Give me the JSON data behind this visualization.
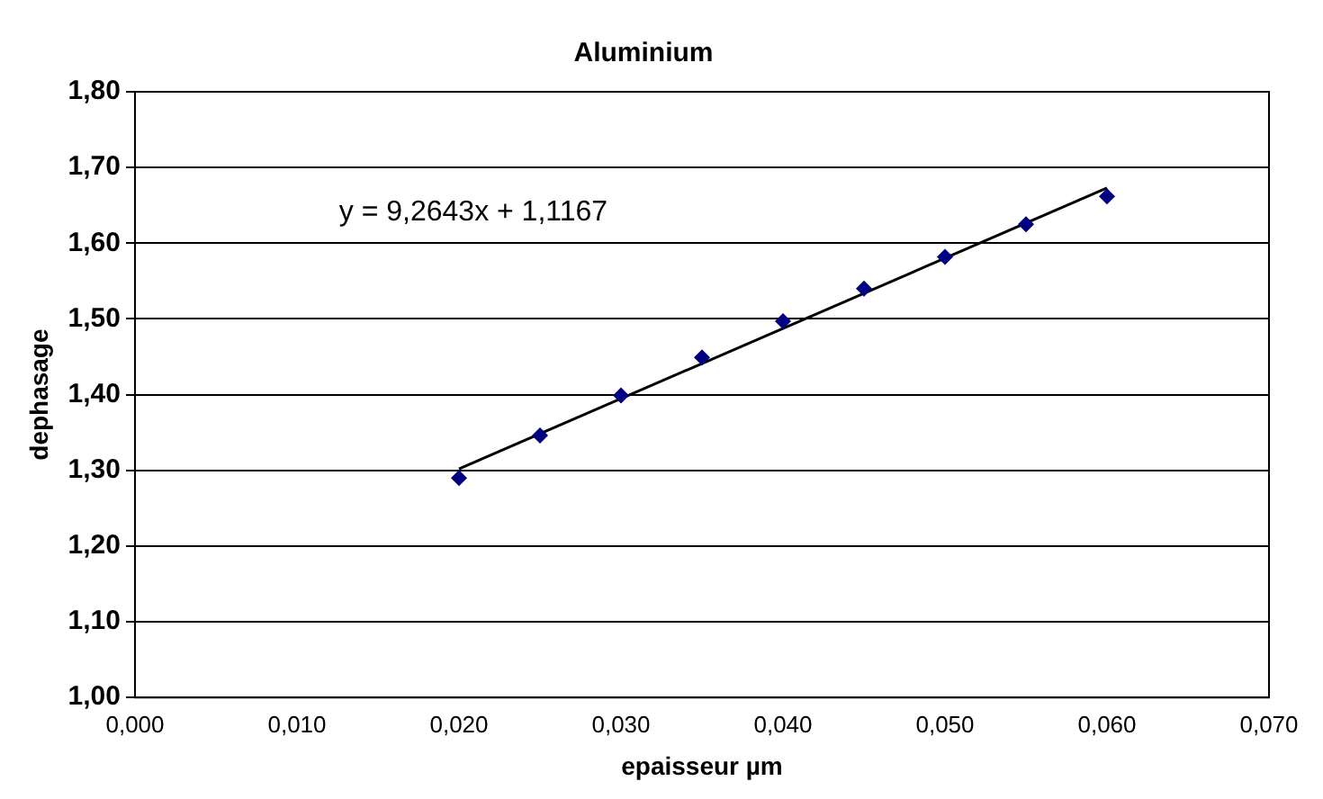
{
  "chart_data": {
    "type": "scatter",
    "title": "Aluminium",
    "xlabel": "epaisseur µm",
    "ylabel": "dephasage",
    "x": [
      0.02,
      0.025,
      0.03,
      0.035,
      0.04,
      0.045,
      0.05,
      0.055,
      0.06
    ],
    "series": [
      {
        "color": "#000080",
        "values": [
          1.29,
          1.346,
          1.399,
          1.449,
          1.497,
          1.54,
          1.582,
          1.625,
          1.662
        ],
        "marker": "diamond"
      },
      {
        "type": "line",
        "color": "#000000",
        "x": [
          0.02,
          0.06
        ],
        "values": [
          1.302,
          1.673
        ],
        "marker": "none"
      }
    ],
    "xlim": [
      0,
      0.07
    ],
    "xticks": [
      {
        "value": 0,
        "label": "0,000"
      },
      {
        "value": 0.01,
        "label": "0,010"
      },
      {
        "value": 0.02,
        "label": "0,020"
      },
      {
        "value": 0.03,
        "label": "0,030"
      },
      {
        "value": 0.04,
        "label": "0,040"
      },
      {
        "value": 0.05,
        "label": "0,050"
      },
      {
        "value": 0.06,
        "label": "0,060"
      },
      {
        "value": 0.07,
        "label": "0,070"
      }
    ],
    "ylim": [
      1,
      1.8
    ],
    "yticks": [
      {
        "value": 1,
        "label": "1,00"
      },
      {
        "value": 1.1,
        "label": "1,10"
      },
      {
        "value": 1.2,
        "label": "1,20"
      },
      {
        "value": 1.3,
        "label": "1,30"
      },
      {
        "value": 1.4,
        "label": "1,40"
      },
      {
        "value": 1.5,
        "label": "1,50"
      },
      {
        "value": 1.6,
        "label": "1,60"
      },
      {
        "value": 1.7,
        "label": "1,70"
      },
      {
        "value": 1.8,
        "label": "1,80"
      }
    ],
    "grid": "y",
    "legend": false,
    "annotations": [
      "y = 9,2643x + 1,1167"
    ]
  }
}
